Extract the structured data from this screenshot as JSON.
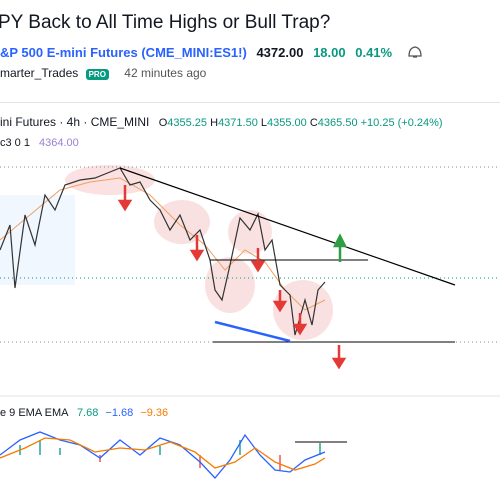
{
  "header": {
    "title": "PY Back to All Time Highs or Bull Trap?",
    "symbol_name": "&P 500 E-mini Futures (CME_MINI:ES1!)",
    "price": "4372.00",
    "change": "18.00",
    "change_pct": "0.41%",
    "author": "marter_Trades",
    "badge": "PRO",
    "time": "42 minutes ago"
  },
  "legend": {
    "symbol": "ini Futures · 4h · CME_MINI",
    "open_label": "O",
    "open": "4355.25",
    "high_label": "H",
    "high": "4371.50",
    "low_label": "L",
    "low": "4355.00",
    "close_label": "C",
    "close": "4365.50",
    "change": "+10.25 (+0.24%)"
  },
  "indicator": {
    "name": "c3 0 1",
    "value": "4364.00"
  },
  "macd": {
    "name": "e 9 EMA EMA",
    "v1": "7.68",
    "v2": "−1.68",
    "v3": "−9.36"
  }
}
